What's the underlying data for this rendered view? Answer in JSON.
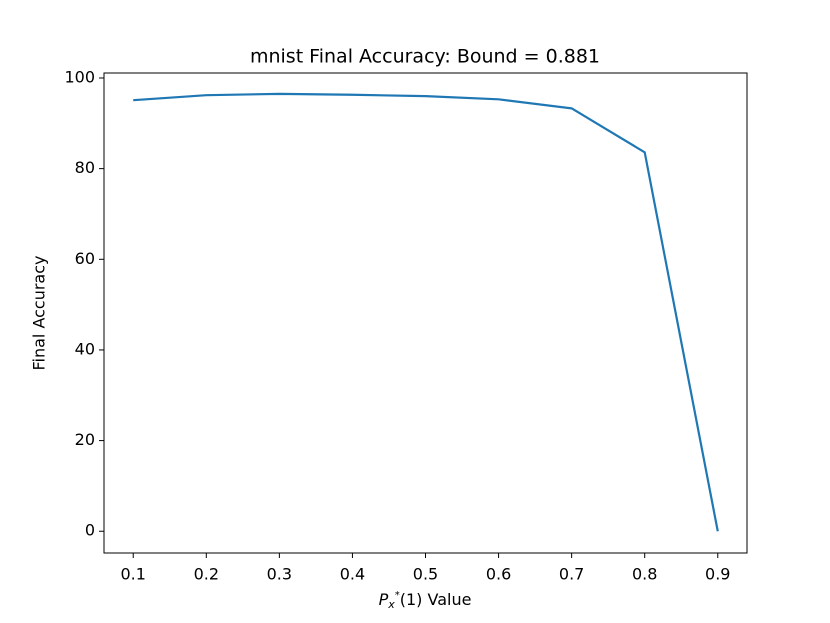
{
  "chart_data": {
    "type": "line",
    "title": "mnist Final Accuracy: Bound = 0.881",
    "xlabel_parts": [
      "P",
      "x",
      "*",
      "(1) Value"
    ],
    "ylabel": "Final Accuracy",
    "x": [
      0.1,
      0.2,
      0.3,
      0.4,
      0.5,
      0.6,
      0.7,
      0.8,
      0.9
    ],
    "series": [
      {
        "color": "#1f77b4",
        "values": [
          95.1,
          96.2,
          96.5,
          96.3,
          96.0,
          95.3,
          93.3,
          83.6,
          0
        ]
      }
    ],
    "xlim": [
      0.06,
      0.94
    ],
    "ylim": [
      -4.8,
      101.1
    ],
    "xticks": [
      0.1,
      0.2,
      0.3,
      0.4,
      0.5,
      0.6,
      0.7,
      0.8,
      0.9
    ],
    "yticks": [
      0,
      20,
      40,
      60,
      80,
      100
    ]
  }
}
